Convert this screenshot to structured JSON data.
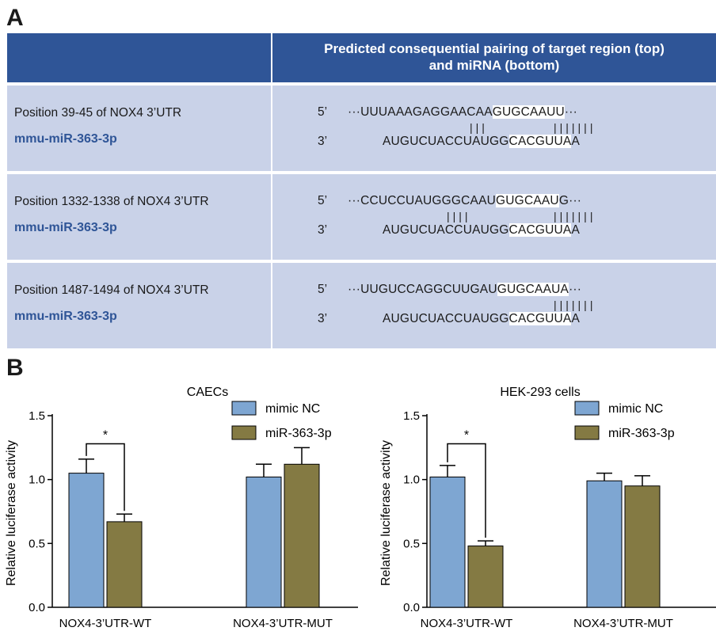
{
  "panel_a": {
    "letter": "A",
    "header": "Predicted consequential pairing of target region (top) and miRNA (bottom)",
    "header_line1": "Predicted consequential pairing of target region (top)",
    "header_line2": "and miRNA (bottom)",
    "rows": [
      {
        "position": "Position 39-45 of NOX4 3’UTR",
        "mirna": "mmu-miR-363-3p",
        "end5": "5’",
        "end3": "3’",
        "target_prefix": "UUUAAAGAGGAACAA",
        "target_seed": "GUGCAAUU",
        "target_dots": "···",
        "pair_marks": "|||",
        "seed_marks": "|||||||",
        "mirna_prefix": "AUGUCUACCUAUGG",
        "mirna_seed": "CACGUUA",
        "mirna_suffix": "A"
      },
      {
        "position": "Position 1332-1338 of NOX4 3’UTR",
        "mirna": "mmu-miR-363-3p",
        "end5": "5’",
        "end3": "3’",
        "target_prefix": "CCUCCUAUGGGCAAU",
        "target_seed": "GUGCAAU",
        "target_suffix": "G",
        "target_dots": "···",
        "pair_marks": "||||",
        "seed_marks": "|||||||",
        "mirna_prefix": "AUGUCUACCUAUGG",
        "mirna_seed": "CACGUUA",
        "mirna_suffix": "A"
      },
      {
        "position": "Position 1487-1494 of NOX4 3’UTR",
        "mirna": "mmu-miR-363-3p",
        "end5": "5’",
        "end3": "3’",
        "target_prefix": "UUGUCCAGGCUUGAU",
        "target_seed": "GUGCAAUA",
        "target_dots": "···",
        "pair_marks": "",
        "seed_marks": "|||||||",
        "mirna_prefix": "AUGUCUACCUAUGG",
        "mirna_seed": "CACGUUA",
        "mirna_suffix": "A"
      }
    ]
  },
  "panel_b": {
    "letter": "B"
  },
  "colors": {
    "header_bg": "#2f5597",
    "row_bg": "#c9d2e8",
    "mimic_nc": "#7ea6d2",
    "mir": "#847a43"
  },
  "chart_data": [
    {
      "type": "bar",
      "title": "CAECs",
      "ylabel": "Relative luciferase activity",
      "ylim": [
        0,
        1.5
      ],
      "yticks": [
        "0.0",
        "0.5",
        "1.0",
        "1.5"
      ],
      "categories": [
        "NOX4-3’UTR-WT",
        "NOX4-3’UTR-MUT"
      ],
      "series": [
        {
          "name": "mimic NC",
          "values": [
            1.05,
            1.02
          ],
          "errors": [
            0.11,
            0.1
          ]
        },
        {
          "name": "miR-363-3p",
          "values": [
            0.67,
            1.12
          ],
          "errors": [
            0.06,
            0.13
          ]
        }
      ],
      "significance": "*"
    },
    {
      "type": "bar",
      "title": "HEK-293 cells",
      "ylabel": "Relative luciferase activity",
      "ylim": [
        0,
        1.5
      ],
      "yticks": [
        "0.0",
        "0.5",
        "1.0",
        "1.5"
      ],
      "categories": [
        "NOX4-3’UTR-WT",
        "NOX4-3’UTR-MUT"
      ],
      "series": [
        {
          "name": "mimic NC",
          "values": [
            1.02,
            0.99
          ],
          "errors": [
            0.09,
            0.06
          ]
        },
        {
          "name": "miR-363-3p",
          "values": [
            0.48,
            0.95
          ],
          "errors": [
            0.04,
            0.08
          ]
        }
      ],
      "significance": "*"
    }
  ]
}
